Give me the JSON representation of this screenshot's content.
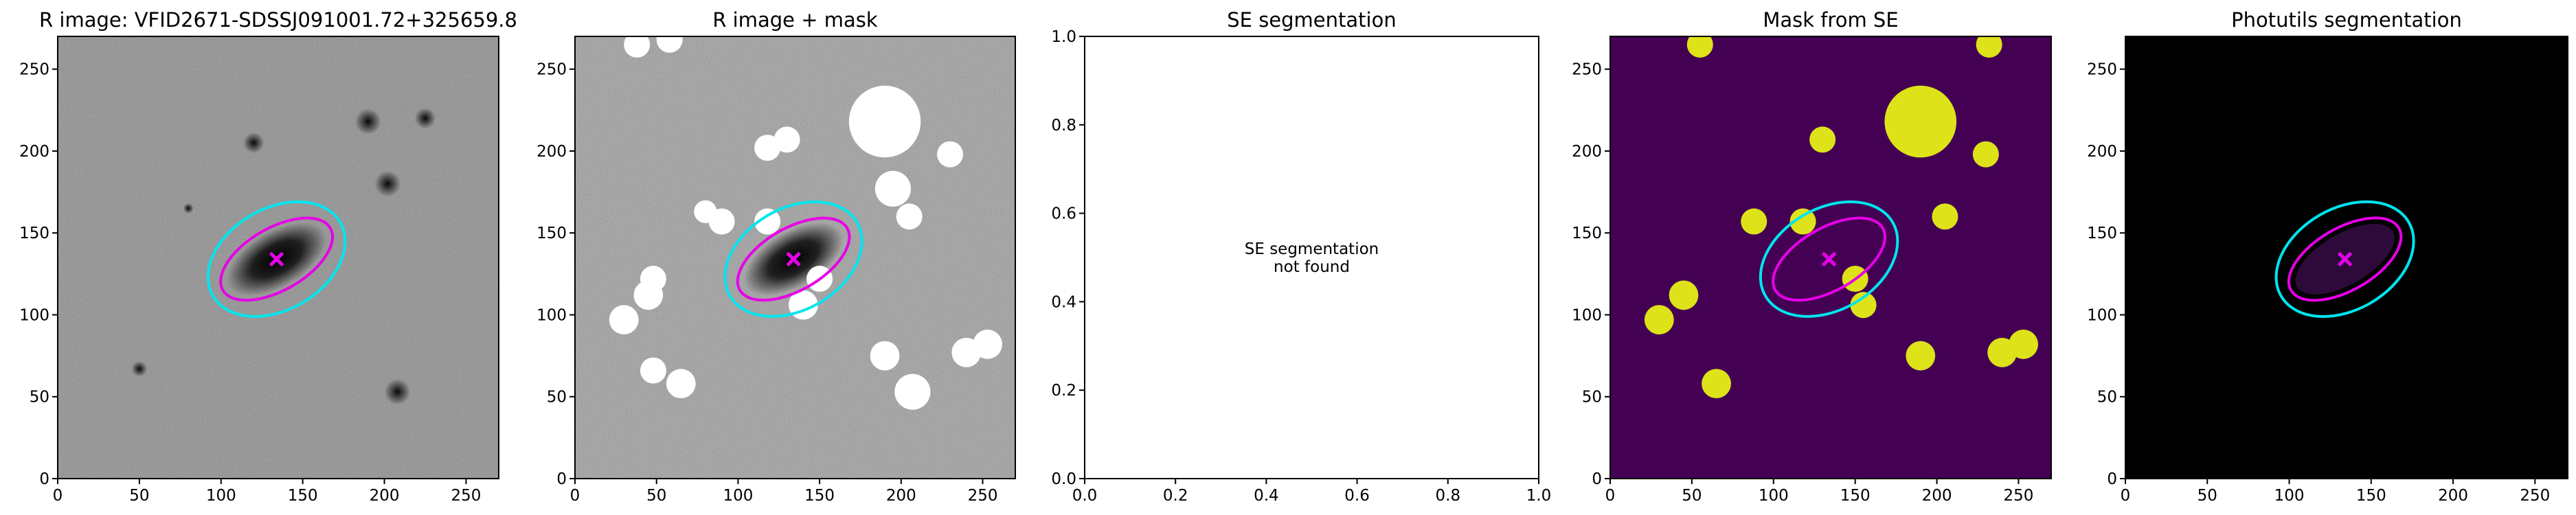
{
  "chart_data": [
    {
      "type": "image",
      "title": "R image: VFID2671-SDSSJ091001.72+325659.8",
      "background": "#6e6e6e",
      "noise": true,
      "galaxy": true,
      "xlim": [
        0,
        270
      ],
      "ylim": [
        0,
        270
      ],
      "xticks": [
        0,
        50,
        100,
        150,
        200,
        250
      ],
      "yticks": [
        0,
        50,
        100,
        150,
        200,
        250
      ],
      "ellipses": [
        {
          "x": 134,
          "y": 134,
          "a": 45,
          "b": 31,
          "angle": 30,
          "color": "#00e5ee"
        },
        {
          "x": 134,
          "y": 134,
          "a": 38,
          "b": 19,
          "angle": 30,
          "color": "#e600e6"
        }
      ],
      "sources": [
        {
          "x": 190,
          "y": 218,
          "r": 5
        },
        {
          "x": 202,
          "y": 180,
          "r": 5
        },
        {
          "x": 208,
          "y": 53,
          "r": 5
        },
        {
          "x": 120,
          "y": 205,
          "r": 4
        },
        {
          "x": 50,
          "y": 67,
          "r": 3
        },
        {
          "x": 80,
          "y": 165,
          "r": 2
        },
        {
          "x": 225,
          "y": 220,
          "r": 4
        }
      ]
    },
    {
      "type": "image",
      "title": "R image + mask",
      "background": "#8a8a8a",
      "noise": true,
      "galaxy": true,
      "mask_color": "#ffffff",
      "xlim": [
        0,
        270
      ],
      "ylim": [
        0,
        270
      ],
      "xticks": [
        0,
        50,
        100,
        150,
        200,
        250
      ],
      "yticks": [
        0,
        50,
        100,
        150,
        200,
        250
      ],
      "ellipses": [
        {
          "x": 134,
          "y": 134,
          "a": 45,
          "b": 31,
          "angle": 30,
          "color": "#00e5ee"
        },
        {
          "x": 134,
          "y": 134,
          "a": 38,
          "b": 19,
          "angle": 30,
          "color": "#e600e6"
        }
      ],
      "masks": [
        {
          "x": 190,
          "y": 218,
          "r": 22
        },
        {
          "x": 230,
          "y": 198,
          "r": 8
        },
        {
          "x": 118,
          "y": 202,
          "r": 8
        },
        {
          "x": 130,
          "y": 207,
          "r": 8
        },
        {
          "x": 195,
          "y": 177,
          "r": 11
        },
        {
          "x": 205,
          "y": 160,
          "r": 8
        },
        {
          "x": 80,
          "y": 163,
          "r": 7
        },
        {
          "x": 90,
          "y": 157,
          "r": 8
        },
        {
          "x": 118,
          "y": 157,
          "r": 8
        },
        {
          "x": 150,
          "y": 122,
          "r": 8
        },
        {
          "x": 140,
          "y": 106,
          "r": 9
        },
        {
          "x": 48,
          "y": 122,
          "r": 8
        },
        {
          "x": 45,
          "y": 112,
          "r": 9
        },
        {
          "x": 30,
          "y": 97,
          "r": 9
        },
        {
          "x": 48,
          "y": 66,
          "r": 8
        },
        {
          "x": 65,
          "y": 58,
          "r": 9
        },
        {
          "x": 190,
          "y": 75,
          "r": 9
        },
        {
          "x": 207,
          "y": 53,
          "r": 11
        },
        {
          "x": 240,
          "y": 77,
          "r": 9
        },
        {
          "x": 253,
          "y": 82,
          "r": 9
        },
        {
          "x": 38,
          "y": 265,
          "r": 8
        },
        {
          "x": 58,
          "y": 268,
          "r": 8
        }
      ]
    },
    {
      "type": "empty",
      "title": "SE segmentation",
      "annotation": [
        "SE segmentation",
        "not found"
      ],
      "annotation_x": 0.5,
      "annotation_y": 0.5,
      "xlim": [
        0,
        1
      ],
      "ylim": [
        0,
        1
      ],
      "xticks": [
        {
          "value": 0,
          "label": "0.0"
        },
        {
          "value": 0.2,
          "label": "0.2"
        },
        {
          "value": 0.4,
          "label": "0.4"
        },
        {
          "value": 0.6,
          "label": "0.6"
        },
        {
          "value": 0.8,
          "label": "0.8"
        },
        {
          "value": 1,
          "label": "1.0"
        }
      ],
      "yticks": [
        {
          "value": 0,
          "label": "0.0"
        },
        {
          "value": 0.2,
          "label": "0.2"
        },
        {
          "value": 0.4,
          "label": "0.4"
        },
        {
          "value": 0.6,
          "label": "0.6"
        },
        {
          "value": 0.8,
          "label": "0.8"
        },
        {
          "value": 1,
          "label": "1.0"
        }
      ]
    },
    {
      "type": "image",
      "title": "Mask from SE",
      "background": "#440154",
      "mask_color": "#dde318",
      "xlim": [
        0,
        270
      ],
      "ylim": [
        0,
        270
      ],
      "xticks": [
        0,
        50,
        100,
        150,
        200,
        250
      ],
      "yticks": [
        0,
        50,
        100,
        150,
        200,
        250
      ],
      "ellipses": [
        {
          "x": 134,
          "y": 134,
          "a": 45,
          "b": 31,
          "angle": 30,
          "color": "#00e5ee"
        },
        {
          "x": 134,
          "y": 134,
          "a": 38,
          "b": 19,
          "angle": 30,
          "color": "#e600e6"
        }
      ],
      "masks": [
        {
          "x": 190,
          "y": 218,
          "r": 22
        },
        {
          "x": 230,
          "y": 198,
          "r": 8
        },
        {
          "x": 130,
          "y": 207,
          "r": 8
        },
        {
          "x": 205,
          "y": 160,
          "r": 8
        },
        {
          "x": 88,
          "y": 157,
          "r": 8
        },
        {
          "x": 118,
          "y": 157,
          "r": 8
        },
        {
          "x": 150,
          "y": 122,
          "r": 8
        },
        {
          "x": 155,
          "y": 106,
          "r": 8
        },
        {
          "x": 45,
          "y": 112,
          "r": 9
        },
        {
          "x": 30,
          "y": 97,
          "r": 9
        },
        {
          "x": 65,
          "y": 58,
          "r": 9
        },
        {
          "x": 190,
          "y": 75,
          "r": 9
        },
        {
          "x": 240,
          "y": 77,
          "r": 9
        },
        {
          "x": 253,
          "y": 82,
          "r": 9
        },
        {
          "x": 55,
          "y": 265,
          "r": 8
        },
        {
          "x": 232,
          "y": 265,
          "r": 8
        }
      ]
    },
    {
      "type": "image",
      "title": "Photutils segmentation",
      "background": "#000000",
      "segment_color": "#2d0a3a",
      "xlim": [
        0,
        270
      ],
      "ylim": [
        0,
        270
      ],
      "xticks": [
        0,
        50,
        100,
        150,
        200,
        250
      ],
      "yticks": [
        0,
        50,
        100,
        150,
        200,
        250
      ],
      "ellipses": [
        {
          "x": 134,
          "y": 134,
          "a": 45,
          "b": 31,
          "angle": 30,
          "color": "#00e5ee"
        },
        {
          "x": 134,
          "y": 134,
          "a": 38,
          "b": 19,
          "angle": 30,
          "color": "#e600e6"
        }
      ]
    }
  ]
}
